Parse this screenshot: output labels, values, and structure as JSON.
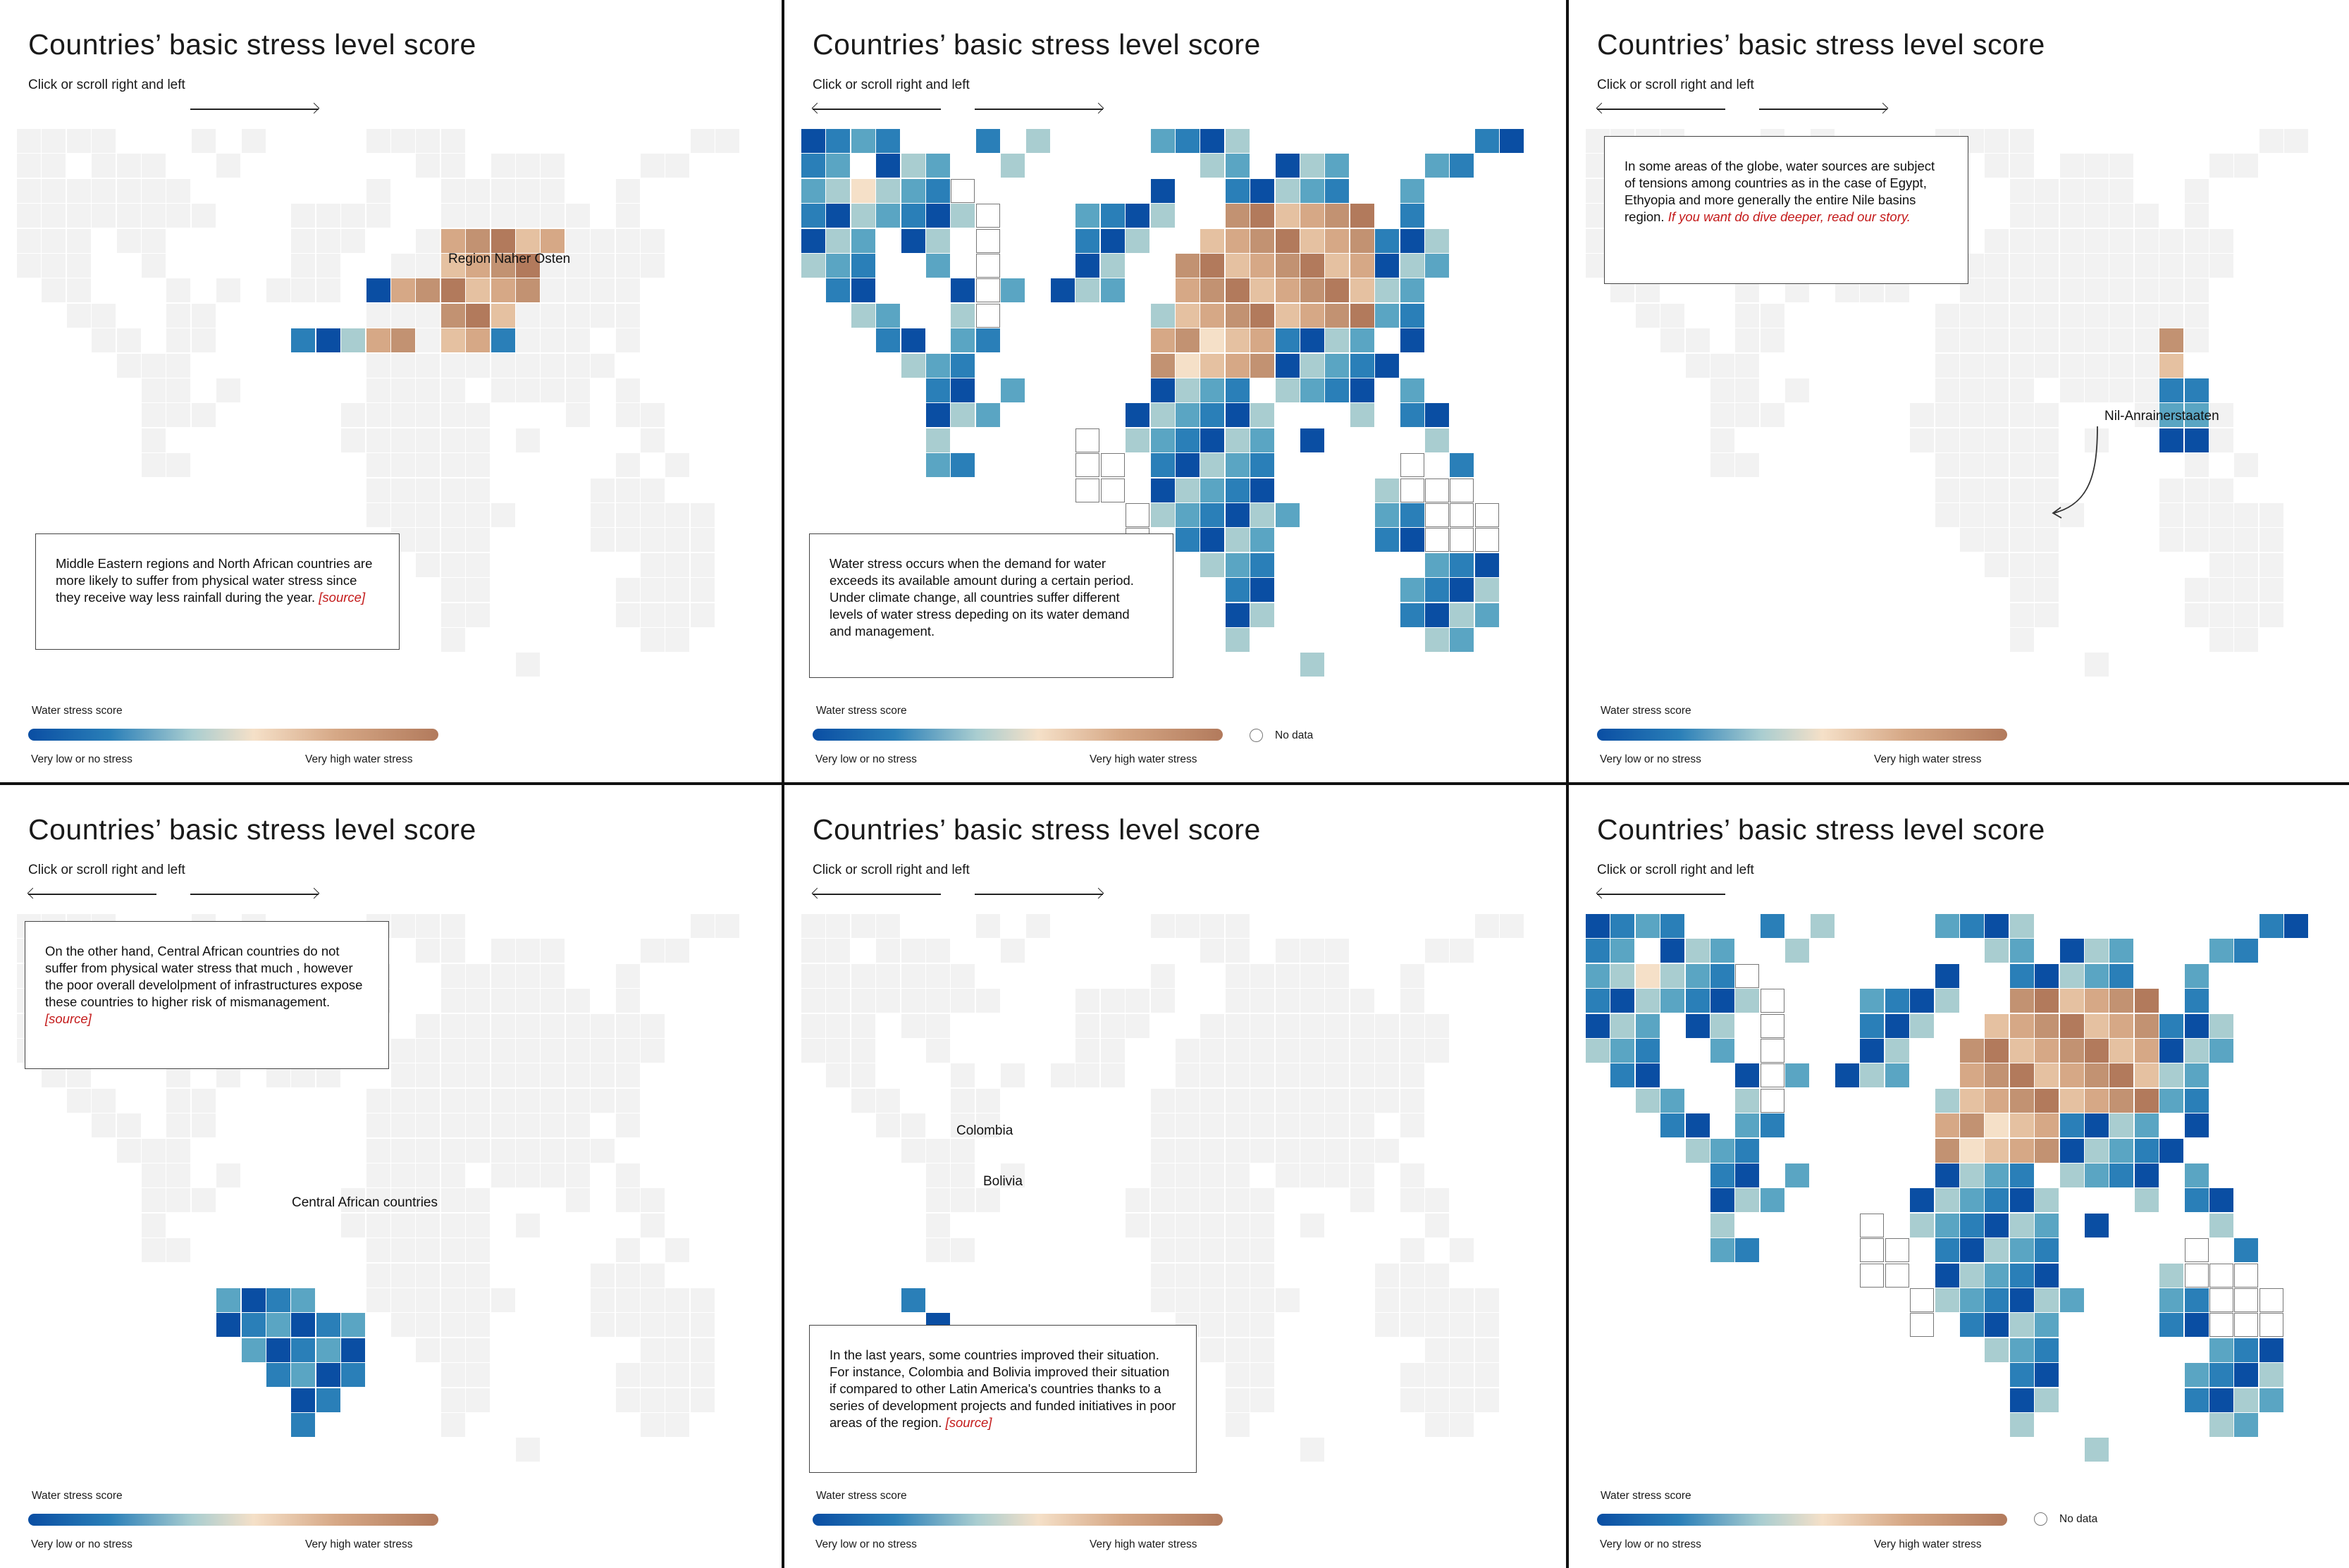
{
  "panels": [
    {
      "title": "Countries’ basic stress level score",
      "subtitle": "Click or scroll right and left",
      "box": {
        "text": "Middle Eastern regions and North African countries are more likely to suffer from physical water stress since they receive way less rainfall during the year.",
        "source": "[source]"
      },
      "labels": [
        "Region Naher Osten"
      ],
      "legend": {
        "title": "Water stress score",
        "low": "Very low or no stress",
        "high": "Very high water stress"
      },
      "no_data": ""
    },
    {
      "title": "Countries’ basic stress level score",
      "subtitle": "Click or scroll right and left",
      "box": {
        "text": "Water stress occurs when the demand for water exceeds its available amount during a certain period. Under climate change, all countries suffer different levels of water stress depeding on its water demand and management.",
        "source": ""
      },
      "labels": [],
      "legend": {
        "title": "Water stress score",
        "low": "Very low or no stress",
        "high": "Very high water stress"
      },
      "no_data": "No data"
    },
    {
      "title": "Countries’ basic stress level score",
      "subtitle": "Click or scroll right and left",
      "box": {
        "text": "In some areas of the globe, water sources are subject of tensions among countries as in the case of Egypt, Ethyopia and more generally the entire Nile basins region.",
        "source": "If you want do dive deeper, read our story."
      },
      "labels": [
        "Nil-Anrainerstaaten"
      ],
      "legend": {
        "title": "Water stress score",
        "low": "Very low or no stress",
        "high": "Very high water stress"
      },
      "no_data": ""
    },
    {
      "title": "Countries’ basic stress level score",
      "subtitle": "Click or scroll right and left",
      "box": {
        "text": "On the other hand, Central African countries do not suffer from physical water stress that much , however the poor overall develolpment of infrastructures expose these countries to higher risk of  mismanagement.",
        "source": "[source]"
      },
      "labels": [
        "Central African countries"
      ],
      "legend": {
        "title": "Water stress score",
        "low": "Very low or no stress",
        "high": "Very high water stress"
      },
      "no_data": ""
    },
    {
      "title": "Countries’ basic stress level score",
      "subtitle": "Click or scroll right and left",
      "box": {
        "text": "In the last years, some countries improved their situation. For instance, Colombia and Bolivia improved their situation if compared to other Latin America's countries thanks to a series of development projects and funded initiatives in poor areas of the region.",
        "source": "[source]"
      },
      "labels": [
        "Colombia",
        "Bolivia"
      ],
      "legend": {
        "title": "Water stress score",
        "low": "Very low or no stress",
        "high": "Very high water stress"
      },
      "no_data": ""
    },
    {
      "title": "Countries’ basic stress level score",
      "subtitle": "Click or scroll right and left",
      "box": null,
      "labels": [],
      "legend": {
        "title": "Water stress score",
        "low": "Very low or no stress",
        "high": "Very high water stress"
      },
      "no_data": "No data"
    }
  ],
  "colors": {
    "scale": [
      "#0a4ea3",
      "#2a7fb8",
      "#5aa5c3",
      "#a9cdd0",
      "#f5e0c8",
      "#e5c1a1",
      "#d6a886",
      "#c29272",
      "#b27a5c"
    ],
    "land": "#f2f2f2",
    "source_link": "#c41a1a"
  }
}
